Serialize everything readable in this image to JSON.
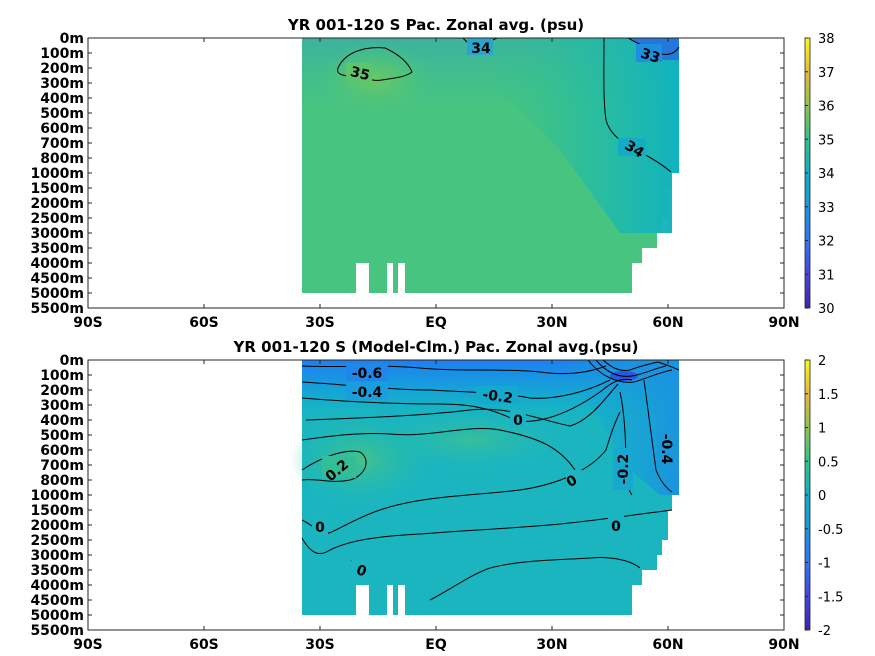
{
  "chart_data": [
    {
      "type": "heatmap",
      "title": "YR 001-120 S Pac. Zonal avg. (psu)",
      "x_ticks": [
        "90S",
        "60S",
        "30S",
        "EQ",
        "30N",
        "60N",
        "90N"
      ],
      "x_range": [
        -90,
        90
      ],
      "y_ticks": [
        "0m",
        "100m",
        "200m",
        "300m",
        "400m",
        "500m",
        "600m",
        "700m",
        "800m",
        "1000m",
        "1500m",
        "2000m",
        "2500m",
        "3000m",
        "3500m",
        "4000m",
        "4500m",
        "5000m",
        "5500m"
      ],
      "colorbar": {
        "range": [
          30,
          38
        ],
        "ticks": [
          "30",
          "31",
          "32",
          "33",
          "34",
          "35",
          "36",
          "37",
          "38"
        ],
        "colormap": "parula"
      },
      "contour_labels": [
        "35",
        "34",
        "33",
        "34"
      ],
      "data_extent": {
        "lat_min": -35,
        "lat_max": 61
      },
      "values_summary": {
        "background": 34.6,
        "subtropical_max": 35.3,
        "north_min": 32.8
      }
    },
    {
      "type": "heatmap",
      "title": "YR 001-120 S (Model-Clm.) Pac. Zonal avg.(psu)",
      "x_ticks": [
        "90S",
        "60S",
        "30S",
        "EQ",
        "30N",
        "60N",
        "90N"
      ],
      "x_range": [
        -90,
        90
      ],
      "y_ticks": [
        "0m",
        "100m",
        "200m",
        "300m",
        "400m",
        "500m",
        "600m",
        "700m",
        "800m",
        "1000m",
        "1500m",
        "2000m",
        "2500m",
        "3000m",
        "3500m",
        "4000m",
        "4500m",
        "5000m",
        "5500m"
      ],
      "colorbar": {
        "range": [
          -2,
          2
        ],
        "ticks": [
          "2",
          "1.5",
          "1",
          "0.5",
          "0",
          "-0.5",
          "-1",
          "-1.5",
          "-2"
        ],
        "colormap": "parula"
      },
      "contour_labels": [
        "-0.6",
        "-0.4",
        "-0.2",
        "0",
        "0.2",
        "0",
        "0",
        "0",
        "-0.2",
        "-0.4",
        "0"
      ],
      "data_extent": {
        "lat_min": -35,
        "lat_max": 61
      },
      "values_summary": {
        "surface_min": -0.7,
        "mid_max": 0.2,
        "deep": -0.05
      }
    }
  ]
}
